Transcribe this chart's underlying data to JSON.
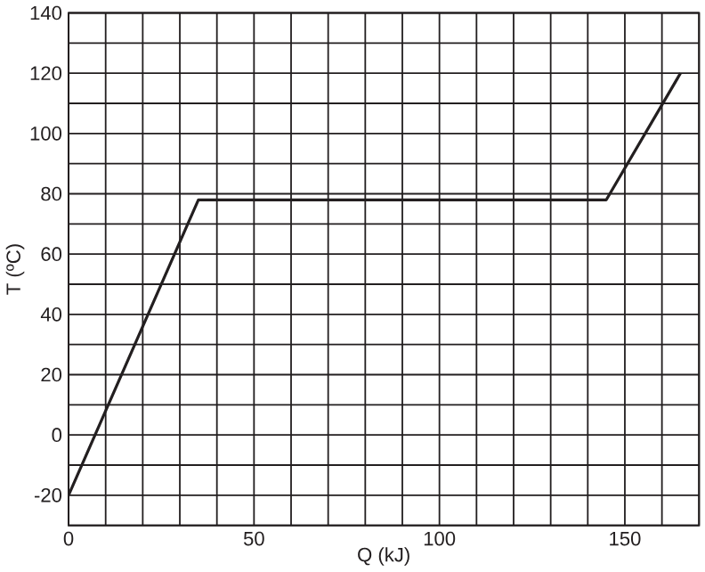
{
  "chart_data": {
    "type": "line",
    "xlabel": "Q (kJ)",
    "ylabel": "T (ºC)",
    "x": [
      0,
      35,
      145,
      165
    ],
    "series": [
      {
        "color": "#231f20",
        "values": [
          -20,
          78,
          78,
          120
        ]
      }
    ],
    "xlim": [
      0,
      170
    ],
    "xticks": [
      0,
      {
        "value": 10,
        "label": null
      },
      {
        "value": 20,
        "label": null
      },
      {
        "value": 30,
        "label": null
      },
      {
        "value": 40,
        "label": null
      },
      50,
      {
        "value": 60,
        "label": null
      },
      {
        "value": 70,
        "label": null
      },
      {
        "value": 80,
        "label": null
      },
      {
        "value": 90,
        "label": null
      },
      100,
      {
        "value": 110,
        "label": null
      },
      {
        "value": 120,
        "label": null
      },
      {
        "value": 130,
        "label": null
      },
      {
        "value": 140,
        "label": null
      },
      150,
      {
        "value": 160,
        "label": null
      },
      {
        "value": 170,
        "label": null
      }
    ],
    "ylim": [
      -30,
      140
    ],
    "yticks": [
      {
        "value": -30,
        "label": null
      },
      -20,
      {
        "value": -10,
        "label": null
      },
      0,
      {
        "value": 10,
        "label": null
      },
      20,
      {
        "value": 30,
        "label": null
      },
      40,
      {
        "value": 50,
        "label": null
      },
      60,
      {
        "value": 70,
        "label": null
      },
      80,
      {
        "value": 90,
        "label": null
      },
      100,
      {
        "value": 110,
        "label": null
      },
      120,
      {
        "value": 130,
        "label": null
      },
      140
    ],
    "grid": true,
    "marker": "none",
    "line_style": "solid"
  }
}
